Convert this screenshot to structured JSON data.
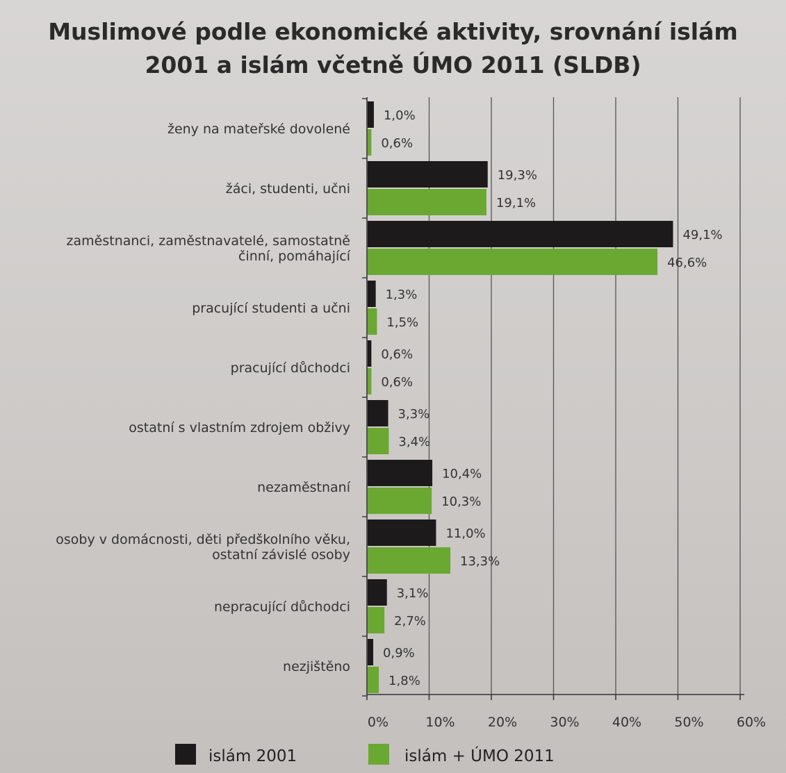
{
  "chart_data": {
    "type": "bar",
    "orientation": "horizontal",
    "title_line1": "Muslimové podle ekonomické aktivity, srovnání islám",
    "title_line2": "2001 a islám včetně ÚMO 2011 (SLDB)",
    "categories": [
      [
        "ženy na mateřské dovolené"
      ],
      [
        "žáci, studenti, učni"
      ],
      [
        "zaměstnanci, zaměstnavatelé, samostatně",
        "činní, pomáhající"
      ],
      [
        "pracující studenti a učni"
      ],
      [
        "pracující důchodci"
      ],
      [
        "ostatní s vlastním zdrojem obživy"
      ],
      [
        "nezaměstnaní"
      ],
      [
        "osoby v domácnosti, děti předškolního věku,",
        "ostatní závislé osoby"
      ],
      [
        "nepracující důchodci"
      ],
      [
        "nezjištěno"
      ]
    ],
    "series": [
      {
        "name": "islám  2001",
        "color": "#1c1a1a",
        "values": [
          1.0,
          19.3,
          49.1,
          1.3,
          0.6,
          3.3,
          10.4,
          11.0,
          3.1,
          0.9
        ],
        "labels": [
          "1,0%",
          "19,3%",
          "49,1%",
          "1,3%",
          "0,6%",
          "3,3%",
          "10,4%",
          "11,0%",
          "3,1%",
          "0,9%"
        ]
      },
      {
        "name": "islám + ÚMO 2011",
        "color": "#6aa832",
        "values": [
          0.6,
          19.1,
          46.6,
          1.5,
          0.6,
          3.4,
          10.3,
          13.3,
          2.7,
          1.8
        ],
        "labels": [
          "0,6%",
          "19,1%",
          "46,6%",
          "1,5%",
          "0,6%",
          "3,4%",
          "10,3%",
          "13,3%",
          "2,7%",
          "1,8%"
        ]
      }
    ],
    "xlim": [
      0,
      60
    ],
    "xticks": [
      0,
      10,
      20,
      30,
      40,
      50,
      60
    ],
    "xtick_labels": [
      "0%",
      "10%",
      "20%",
      "30%",
      "40%",
      "50%",
      "60%"
    ],
    "grid": true,
    "legend_position": "bottom"
  }
}
